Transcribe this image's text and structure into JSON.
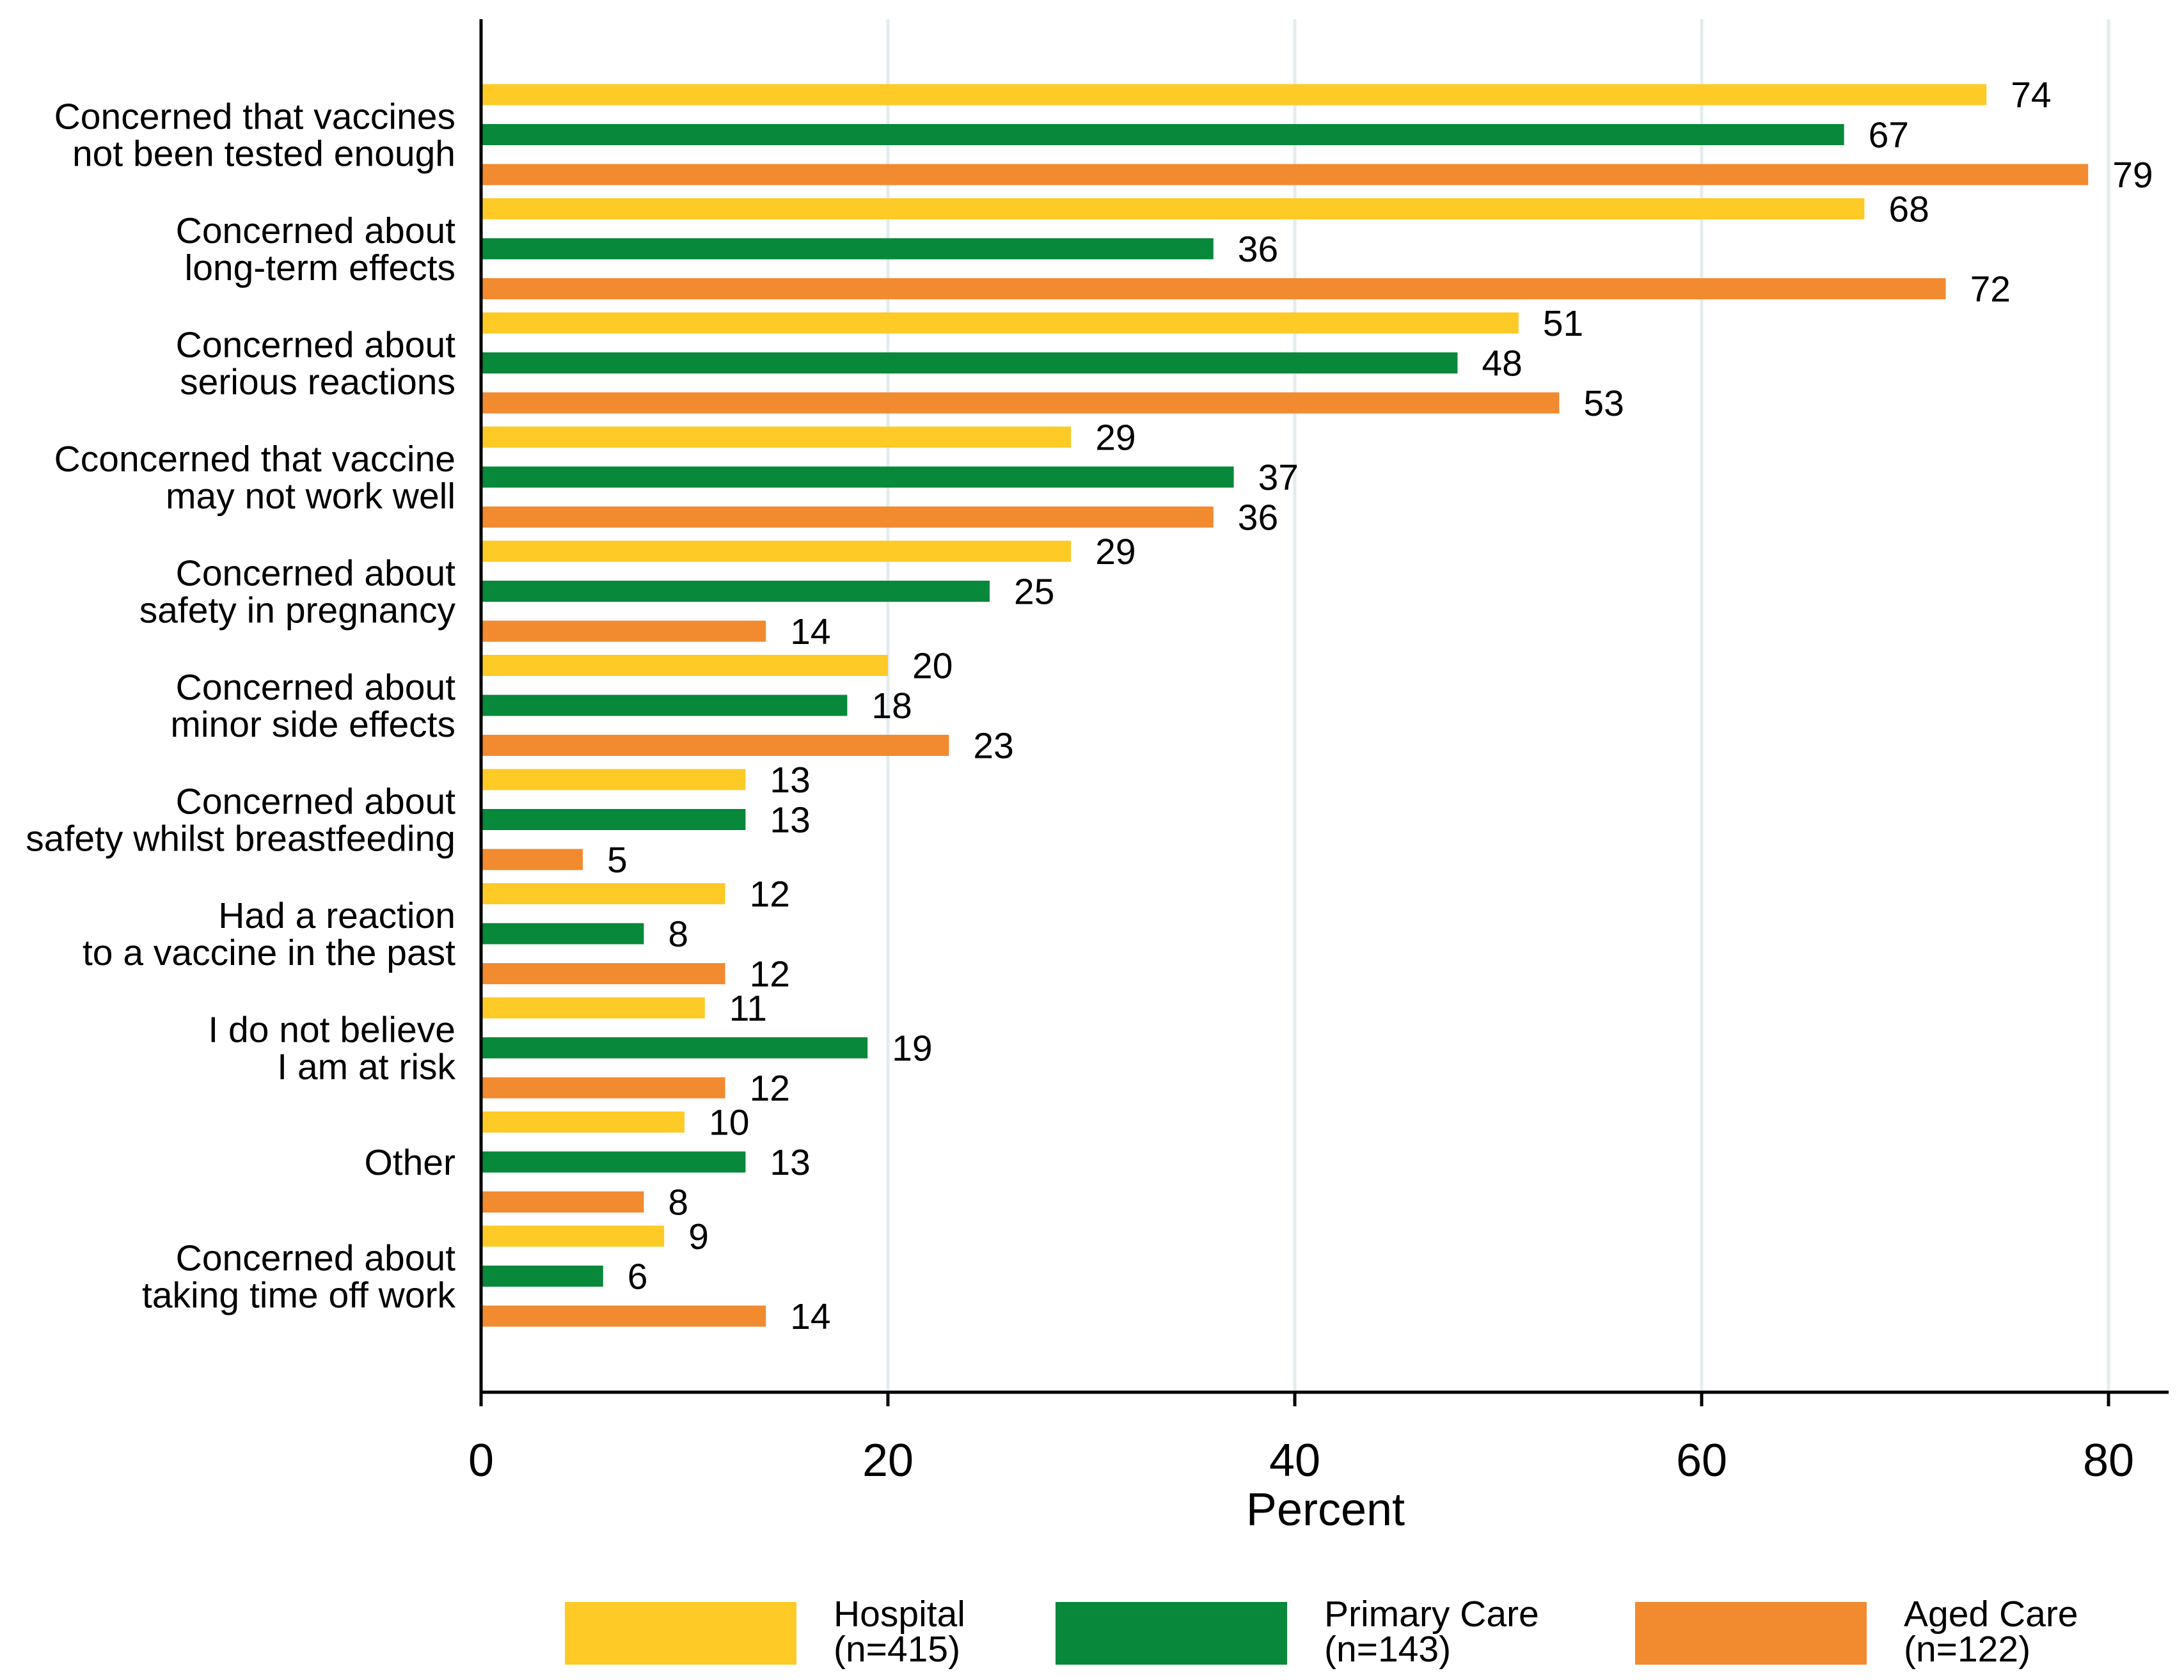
{
  "chart_data": {
    "type": "bar",
    "orientation": "horizontal",
    "title": "",
    "xlabel": "Percent",
    "ylabel": "",
    "xlim": [
      0,
      80
    ],
    "xticks": [
      0,
      20,
      40,
      60,
      80
    ],
    "grid": "vertical",
    "legend_position": "bottom",
    "categories": [
      [
        "Concerned that vaccines",
        "not been tested enough"
      ],
      [
        "Concerned about",
        "long-term effects"
      ],
      [
        "Concerned about",
        "serious reactions"
      ],
      [
        "Cconcerned that vaccine",
        "may not work well"
      ],
      [
        "Concerned about",
        "safety in pregnancy"
      ],
      [
        "Concerned about",
        "minor side effects"
      ],
      [
        "Concerned about",
        "safety whilst breastfeeding"
      ],
      [
        "Had a reaction",
        "to a vaccine in the past"
      ],
      [
        "I do not believe",
        "I am at risk"
      ],
      [
        "Other"
      ],
      [
        "Concerned about",
        "taking time off work"
      ]
    ],
    "series": [
      {
        "name": "Hospital",
        "n": "(n=415)",
        "color": "#FDCA26",
        "values": [
          74,
          68,
          51,
          29,
          29,
          20,
          13,
          12,
          11,
          10,
          9
        ]
      },
      {
        "name": "Primary Care",
        "n": "(n=143)",
        "color": "#07883A",
        "values": [
          67,
          36,
          48,
          37,
          25,
          18,
          13,
          8,
          19,
          13,
          6
        ]
      },
      {
        "name": "Aged Care",
        "n": "(n=122)",
        "color": "#F28A30",
        "values": [
          79,
          72,
          53,
          36,
          14,
          23,
          5,
          12,
          12,
          8,
          14
        ]
      }
    ]
  },
  "colors": {
    "grid": "#E3ECEE",
    "axis": "#000000"
  }
}
